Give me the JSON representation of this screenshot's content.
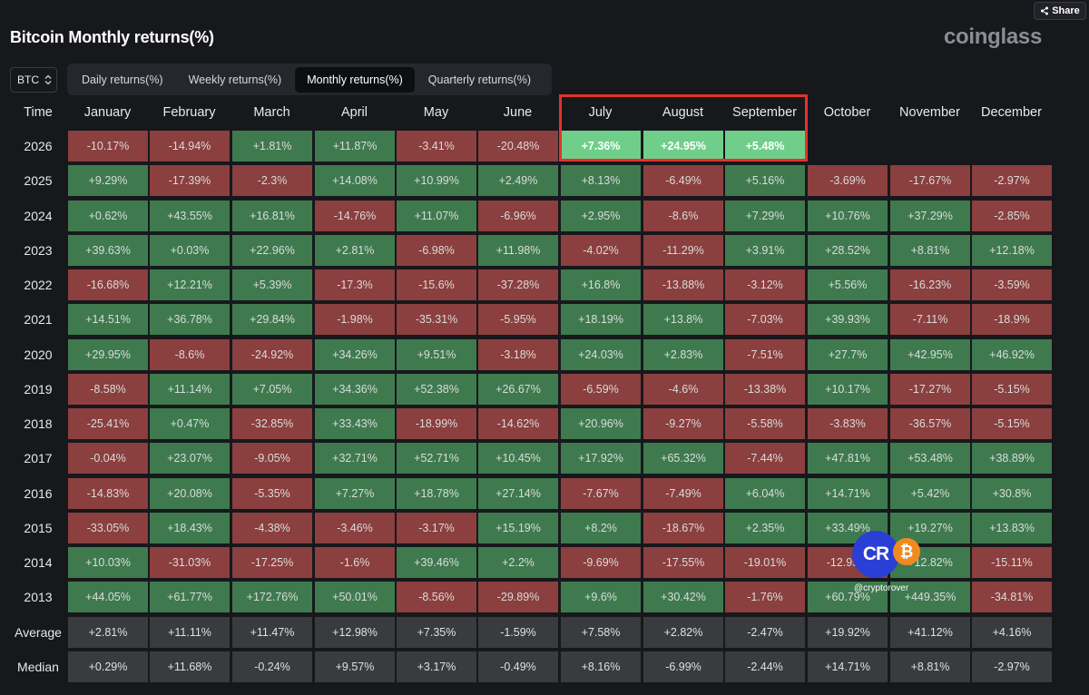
{
  "toolbar": {
    "share_label": "Share"
  },
  "header": {
    "title": "Bitcoin Monthly returns(%)",
    "brand": "coinglass"
  },
  "controls": {
    "coin": "BTC",
    "tabs": [
      {
        "label": "Daily returns(%)",
        "active": false
      },
      {
        "label": "Weekly returns(%)",
        "active": false
      },
      {
        "label": "Monthly returns(%)",
        "active": true
      },
      {
        "label": "Quarterly returns(%)",
        "active": false
      }
    ]
  },
  "table": {
    "columns": [
      "Time",
      "January",
      "February",
      "March",
      "April",
      "May",
      "June",
      "July",
      "August",
      "September",
      "October",
      "November",
      "December"
    ],
    "highlighted_year": "2026",
    "highlighted_months": [
      "July",
      "August",
      "September"
    ],
    "rows": [
      {
        "label": "2026",
        "values": [
          "-10.17%",
          "-14.94%",
          "+1.81%",
          "+11.87%",
          "-3.41%",
          "-20.48%",
          "+7.36%",
          "+24.95%",
          "+5.48%",
          "",
          "",
          ""
        ]
      },
      {
        "label": "2025",
        "values": [
          "+9.29%",
          "-17.39%",
          "-2.3%",
          "+14.08%",
          "+10.99%",
          "+2.49%",
          "+8.13%",
          "-6.49%",
          "+5.16%",
          "-3.69%",
          "-17.67%",
          "-2.97%"
        ]
      },
      {
        "label": "2024",
        "values": [
          "+0.62%",
          "+43.55%",
          "+16.81%",
          "-14.76%",
          "+11.07%",
          "-6.96%",
          "+2.95%",
          "-8.6%",
          "+7.29%",
          "+10.76%",
          "+37.29%",
          "-2.85%"
        ]
      },
      {
        "label": "2023",
        "values": [
          "+39.63%",
          "+0.03%",
          "+22.96%",
          "+2.81%",
          "-6.98%",
          "+11.98%",
          "-4.02%",
          "-11.29%",
          "+3.91%",
          "+28.52%",
          "+8.81%",
          "+12.18%"
        ]
      },
      {
        "label": "2022",
        "values": [
          "-16.68%",
          "+12.21%",
          "+5.39%",
          "-17.3%",
          "-15.6%",
          "-37.28%",
          "+16.8%",
          "-13.88%",
          "-3.12%",
          "+5.56%",
          "-16.23%",
          "-3.59%"
        ]
      },
      {
        "label": "2021",
        "values": [
          "+14.51%",
          "+36.78%",
          "+29.84%",
          "-1.98%",
          "-35.31%",
          "-5.95%",
          "+18.19%",
          "+13.8%",
          "-7.03%",
          "+39.93%",
          "-7.11%",
          "-18.9%"
        ]
      },
      {
        "label": "2020",
        "values": [
          "+29.95%",
          "-8.6%",
          "-24.92%",
          "+34.26%",
          "+9.51%",
          "-3.18%",
          "+24.03%",
          "+2.83%",
          "-7.51%",
          "+27.7%",
          "+42.95%",
          "+46.92%"
        ]
      },
      {
        "label": "2019",
        "values": [
          "-8.58%",
          "+11.14%",
          "+7.05%",
          "+34.36%",
          "+52.38%",
          "+26.67%",
          "-6.59%",
          "-4.6%",
          "-13.38%",
          "+10.17%",
          "-17.27%",
          "-5.15%"
        ]
      },
      {
        "label": "2018",
        "values": [
          "-25.41%",
          "+0.47%",
          "-32.85%",
          "+33.43%",
          "-18.99%",
          "-14.62%",
          "+20.96%",
          "-9.27%",
          "-5.58%",
          "-3.83%",
          "-36.57%",
          "-5.15%"
        ]
      },
      {
        "label": "2017",
        "values": [
          "-0.04%",
          "+23.07%",
          "-9.05%",
          "+32.71%",
          "+52.71%",
          "+10.45%",
          "+17.92%",
          "+65.32%",
          "-7.44%",
          "+47.81%",
          "+53.48%",
          "+38.89%"
        ]
      },
      {
        "label": "2016",
        "values": [
          "-14.83%",
          "+20.08%",
          "-5.35%",
          "+7.27%",
          "+18.78%",
          "+27.14%",
          "-7.67%",
          "-7.49%",
          "+6.04%",
          "+14.71%",
          "+5.42%",
          "+30.8%"
        ]
      },
      {
        "label": "2015",
        "values": [
          "-33.05%",
          "+18.43%",
          "-4.38%",
          "-3.46%",
          "-3.17%",
          "+15.19%",
          "+8.2%",
          "-18.67%",
          "+2.35%",
          "+33.49%",
          "+19.27%",
          "+13.83%"
        ]
      },
      {
        "label": "2014",
        "values": [
          "+10.03%",
          "-31.03%",
          "-17.25%",
          "-1.6%",
          "+39.46%",
          "+2.2%",
          "-9.69%",
          "-17.55%",
          "-19.01%",
          "-12.95%",
          "+12.82%",
          "-15.11%"
        ]
      },
      {
        "label": "2013",
        "values": [
          "+44.05%",
          "+61.77%",
          "+172.76%",
          "+50.01%",
          "-8.56%",
          "-29.89%",
          "+9.6%",
          "+30.42%",
          "-1.76%",
          "+60.79%",
          "+449.35%",
          "-34.81%"
        ]
      },
      {
        "label": "Average",
        "stat": true,
        "values": [
          "+2.81%",
          "+11.11%",
          "+11.47%",
          "+12.98%",
          "+7.35%",
          "-1.59%",
          "+7.58%",
          "+2.82%",
          "-2.47%",
          "+19.92%",
          "+41.12%",
          "+4.16%"
        ]
      },
      {
        "label": "Median",
        "stat": true,
        "values": [
          "+0.29%",
          "+11.68%",
          "-0.24%",
          "+9.57%",
          "+3.17%",
          "-0.49%",
          "+8.16%",
          "-6.99%",
          "-2.44%",
          "+14.71%",
          "+8.81%",
          "-2.97%"
        ]
      }
    ]
  },
  "watermark": {
    "logo_text": "CR",
    "coin_symbol": "₿",
    "handle": "@cryptorover"
  },
  "colors": {
    "positive": "#3f7a4f",
    "negative": "#8b3f3f",
    "stat": "#3a3b3f",
    "highlight": "#6fcf8a",
    "highlight_border": "#e3332c"
  }
}
